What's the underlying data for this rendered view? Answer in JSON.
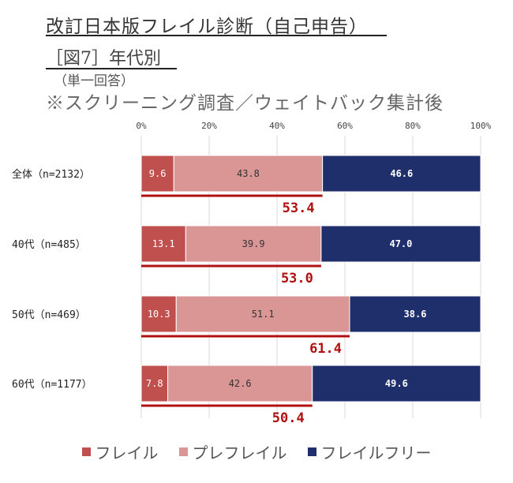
{
  "header": {
    "title": "改訂日本版フレイル診断（自己申告）",
    "subtitle": "［図7］年代別",
    "note_single": "（単一回答）",
    "note_screening": "※スクリーニング調査／ウェイトバック集計後"
  },
  "colors": {
    "frail": "#c0504d",
    "prefrail": "#d99694",
    "free": "#1f2f6b",
    "sum_line": "#b01010",
    "sum_text": "#b01010"
  },
  "chart_data": {
    "type": "bar",
    "orientation": "horizontal",
    "stacked": true,
    "percent_stacked": true,
    "x_ticks": [
      "0%",
      "20%",
      "40%",
      "60%",
      "80%",
      "100%"
    ],
    "xlim": [
      0,
      100
    ],
    "grid": true,
    "legend_position": "bottom",
    "categories": [
      "全体（n=2132）",
      "40代（n=485）",
      "50代（n=469）",
      "60代（n=1177）"
    ],
    "series": [
      {
        "name": "フレイル",
        "values": [
          9.6,
          13.1,
          10.3,
          7.8
        ],
        "labels": [
          "9.6",
          "13.1",
          "10.3",
          "7.8"
        ]
      },
      {
        "name": "プレフレイル",
        "values": [
          43.8,
          39.9,
          51.1,
          42.6
        ],
        "labels": [
          "43.8",
          "39.9",
          "51.1",
          "42.6"
        ]
      },
      {
        "name": "フレイルフリー",
        "values": [
          46.6,
          47.0,
          38.6,
          49.6
        ],
        "labels": [
          "46.6",
          "47.0",
          "38.6",
          "49.6"
        ]
      }
    ],
    "sum_frail_prefrail": {
      "values": [
        53.4,
        53.0,
        61.4,
        50.4
      ],
      "labels": [
        "53.4",
        "53.0",
        "61.4",
        "50.4"
      ]
    }
  }
}
